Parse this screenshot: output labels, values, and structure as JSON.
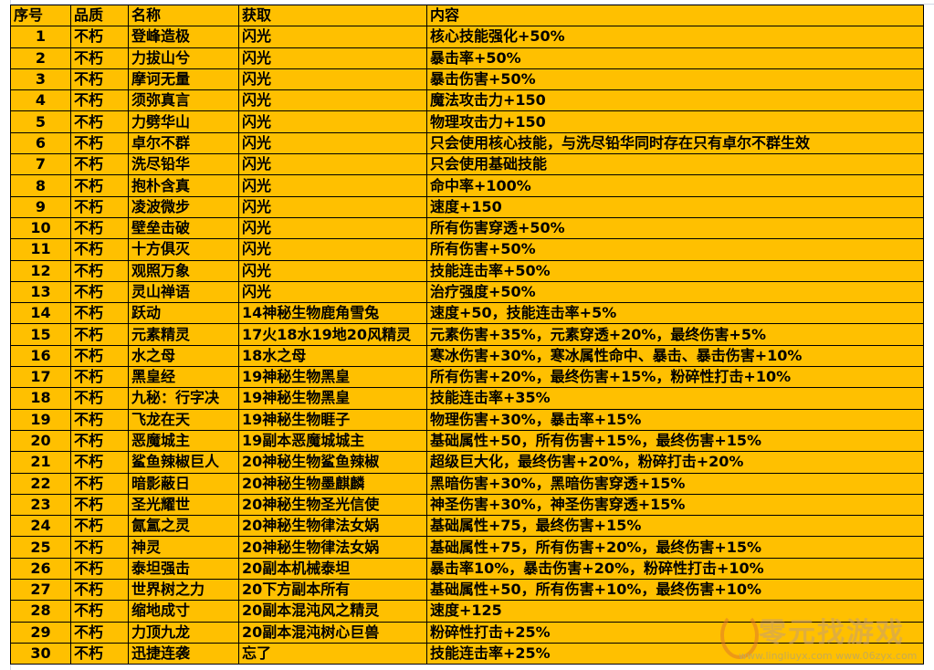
{
  "table": {
    "headers": [
      "序号",
      "品质",
      "名称",
      "获取",
      "内容"
    ],
    "rows": [
      [
        "1",
        "不朽",
        "登峰造极",
        "闪光",
        "核心技能强化+50%"
      ],
      [
        "2",
        "不朽",
        "力拔山兮",
        "闪光",
        "暴击率+50%"
      ],
      [
        "3",
        "不朽",
        "摩诃无量",
        "闪光",
        "暴击伤害+50%"
      ],
      [
        "4",
        "不朽",
        "须弥真言",
        "闪光",
        "魔法攻击力+150"
      ],
      [
        "5",
        "不朽",
        "力劈华山",
        "闪光",
        "物理攻击力+150"
      ],
      [
        "6",
        "不朽",
        "卓尔不群",
        "闪光",
        "只会使用核心技能，与洗尽铅华同时存在只有卓尔不群生效"
      ],
      [
        "7",
        "不朽",
        "洗尽铅华",
        "闪光",
        "只会使用基础技能"
      ],
      [
        "8",
        "不朽",
        "抱朴含真",
        "闪光",
        "命中率+100%"
      ],
      [
        "9",
        "不朽",
        "凌波微步",
        "闪光",
        "速度+150"
      ],
      [
        "10",
        "不朽",
        "壁垒击破",
        "闪光",
        "所有伤害穿透+50%"
      ],
      [
        "11",
        "不朽",
        "十方俱灭",
        "闪光",
        "所有伤害+50%"
      ],
      [
        "12",
        "不朽",
        "观照万象",
        "闪光",
        "技能连击率+50%"
      ],
      [
        "13",
        "不朽",
        "灵山禅语",
        "闪光",
        "治疗强度+50%"
      ],
      [
        "14",
        "不朽",
        "跃动",
        "14神秘生物鹿角雪兔",
        "速度+50，技能连击率+5%"
      ],
      [
        "15",
        "不朽",
        "元素精灵",
        "17火18水19地20风精灵",
        "元素伤害+35%，元素穿透+20%，最终伤害+5%"
      ],
      [
        "16",
        "不朽",
        "水之母",
        "18水之母",
        "寒冰伤害+30%，寒冰属性命中、暴击、暴击伤害+10%"
      ],
      [
        "17",
        "不朽",
        "黑皇经",
        "19神秘生物黑皇",
        "所有伤害+20%，最终伤害+15%，粉碎性打击+10%"
      ],
      [
        "18",
        "不朽",
        "九秘：行字决",
        "19神秘生物黑皇",
        "技能连击率+35%"
      ],
      [
        "19",
        "不朽",
        "飞龙在天",
        "19神秘生物睚子",
        "物理伤害+30%，暴击率+15%"
      ],
      [
        "20",
        "不朽",
        "恶魔城主",
        "19副本恶魔城城主",
        "基础属性+50，所有伤害+15%，最终伤害+15%"
      ],
      [
        "21",
        "不朽",
        "鲨鱼辣椒巨人",
        "20神秘生物鲨鱼辣椒",
        "超级巨大化，最终伤害+20%，粉碎打击+20%"
      ],
      [
        "22",
        "不朽",
        "暗影蔽日",
        "20神秘生物墨麒麟",
        "黑暗伤害+30%，黑暗伤害穿透+15%"
      ],
      [
        "23",
        "不朽",
        "圣光耀世",
        "20神秘生物圣光信使",
        "神圣伤害+30%，神圣伤害穿透+15%"
      ],
      [
        "24",
        "不朽",
        "氤氲之灵",
        "20神秘生物律法女娲",
        "基础属性+75，最终伤害+15%"
      ],
      [
        "25",
        "不朽",
        "神灵",
        "20神秘生物律法女娲",
        "基础属性+75，所有伤害+20%，最终伤害+15%"
      ],
      [
        "26",
        "不朽",
        "泰坦强击",
        "20副本机械泰坦",
        "暴击率10%，暴击伤害+20%，粉碎性打击+10%"
      ],
      [
        "27",
        "不朽",
        "世界树之力",
        "20下方副本所有",
        "基础属性+50，所有伤害+10%，最终伤害+10%"
      ],
      [
        "28",
        "不朽",
        "缩地成寸",
        "20副本混沌风之精灵",
        "速度+125"
      ],
      [
        "29",
        "不朽",
        "力顶九龙",
        "20副本混沌树心巨兽",
        "粉碎性打击+25%"
      ],
      [
        "30",
        "不朽",
        "迅捷连袭",
        "忘了",
        "技能连击率+25%"
      ]
    ]
  },
  "watermark": {
    "name": "零元找游戏",
    "url": "www.lingliuyx.com  www.06zyx.com"
  },
  "colors": {
    "cell_fill": "#ffc000",
    "border": "#000000"
  }
}
